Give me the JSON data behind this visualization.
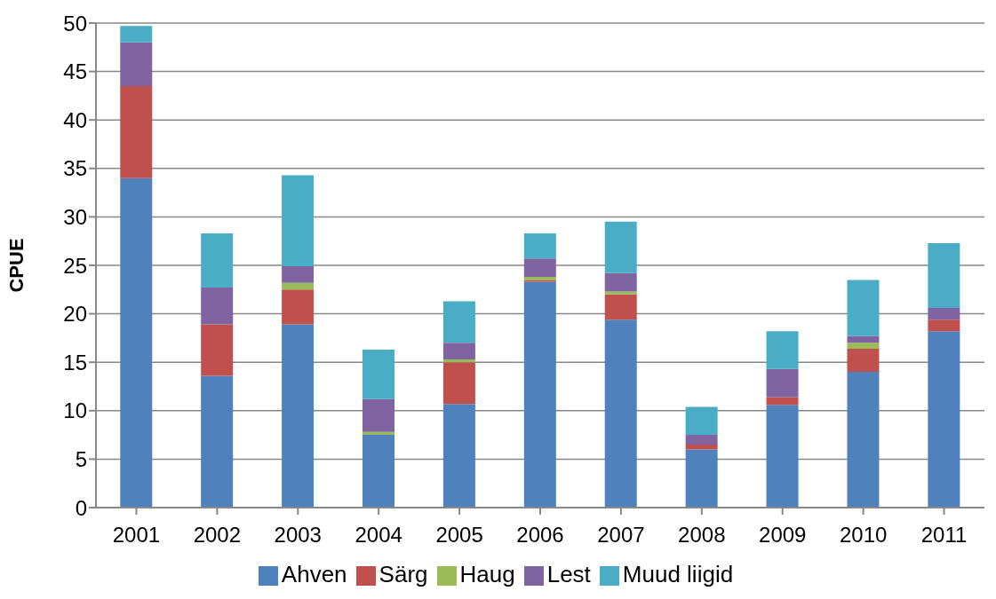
{
  "chart_data": {
    "type": "bar",
    "stacked": true,
    "ylabel": "CPUE",
    "categories": [
      "2001",
      "2002",
      "2003",
      "2004",
      "2005",
      "2006",
      "2007",
      "2008",
      "2009",
      "2010",
      "2011"
    ],
    "series": [
      {
        "name": "Ahven",
        "color": "#4f81bd",
        "values": [
          34.0,
          13.6,
          18.9,
          7.5,
          10.7,
          23.3,
          19.4,
          6.0,
          10.6,
          14.0,
          18.2
        ]
      },
      {
        "name": "Särg",
        "color": "#c0504d",
        "values": [
          9.5,
          5.3,
          3.6,
          0,
          4.3,
          0.2,
          2.6,
          0.5,
          0.8,
          2.4,
          1.2
        ]
      },
      {
        "name": "Haug",
        "color": "#9bbb59",
        "values": [
          0,
          0,
          0.7,
          0.3,
          0.3,
          0.3,
          0.3,
          0,
          0,
          0.6,
          0
        ]
      },
      {
        "name": "Lest",
        "color": "#8064a2",
        "values": [
          4.5,
          3.8,
          1.7,
          3.4,
          1.7,
          1.9,
          1.9,
          1.0,
          2.9,
          0.7,
          1.2
        ]
      },
      {
        "name": "Muud liigid",
        "color": "#4bacc6",
        "values": [
          1.7,
          5.6,
          9.4,
          5.1,
          4.3,
          2.6,
          5.3,
          2.9,
          3.9,
          5.8,
          6.7
        ]
      }
    ],
    "ylim": [
      0,
      50
    ],
    "yticks": [
      0,
      5,
      10,
      15,
      20,
      25,
      30,
      35,
      40,
      45,
      50
    ],
    "grid": "y",
    "legend": "bottom"
  }
}
